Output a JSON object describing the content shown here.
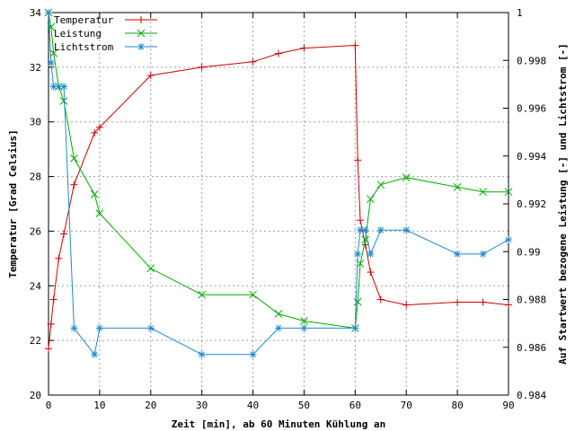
{
  "chart_data": {
    "type": "line",
    "xlabel": "Zeit [min], ab 60 Minuten Kühlung an",
    "ylabel": "Temperatur [Grad Celsius]",
    "y2label": "Auf Startwert bezogene Leistung [-] und Lichtstrom [-]",
    "xlim": [
      0,
      90
    ],
    "ylim": [
      20,
      34
    ],
    "y2lim": [
      0.984,
      1.0
    ],
    "x_ticks": [
      0,
      10,
      20,
      30,
      40,
      50,
      60,
      70,
      80,
      90
    ],
    "y_ticks": [
      20,
      22,
      24,
      26,
      28,
      30,
      32,
      34
    ],
    "y2_ticks": [
      "0.984",
      "0.986",
      "0.988",
      "0.99",
      "0.992",
      "0.994",
      "0.996",
      "0.998",
      "1"
    ],
    "grid": true,
    "legend_position": "top-left",
    "series": [
      {
        "name": "Temperatur",
        "axis": "left",
        "color": "#cc0000",
        "marker": "plus",
        "x": [
          0,
          0.5,
          1,
          2,
          3,
          5,
          9,
          10,
          20,
          30,
          40,
          45,
          50,
          60,
          60.5,
          61,
          62,
          63,
          65,
          70,
          80,
          85,
          90
        ],
        "y": [
          21.7,
          22.6,
          23.5,
          25.0,
          25.9,
          27.7,
          29.6,
          29.8,
          31.7,
          32.0,
          32.2,
          32.5,
          32.7,
          32.8,
          28.6,
          26.4,
          25.5,
          24.5,
          23.5,
          23.3,
          23.4,
          23.4,
          23.3
        ]
      },
      {
        "name": "Leistung",
        "axis": "right",
        "color": "#00aa00",
        "marker": "x",
        "x": [
          0,
          0.5,
          1,
          2,
          3,
          5,
          9,
          10,
          20,
          30,
          40,
          45,
          50,
          60,
          60.5,
          61,
          62,
          63,
          65,
          70,
          80,
          85,
          90
        ],
        "y": [
          1.0,
          0.9994,
          0.9983,
          0.9969,
          0.9963,
          0.9939,
          0.9924,
          0.9916,
          0.9893,
          0.9882,
          0.9882,
          0.9874,
          0.9871,
          0.9868,
          0.9879,
          0.9895,
          0.9905,
          0.9922,
          0.9928,
          0.9931,
          0.9927,
          0.9925,
          0.9925
        ]
      },
      {
        "name": "Lichtstrom",
        "axis": "right",
        "color": "#1f8ad0",
        "marker": "star",
        "x": [
          0,
          0.5,
          1,
          2,
          3,
          5,
          9,
          10,
          20,
          30,
          40,
          45,
          50,
          60,
          60.5,
          61,
          62,
          63,
          65,
          70,
          80,
          85,
          90
        ],
        "y": [
          1.0,
          0.9979,
          0.9969,
          0.9969,
          0.9969,
          0.9868,
          0.9857,
          0.9868,
          0.9868,
          0.9857,
          0.9857,
          0.9868,
          0.9868,
          0.9868,
          0.9899,
          0.9909,
          0.9909,
          0.9899,
          0.9909,
          0.9909,
          0.9899,
          0.9899,
          0.9905
        ]
      }
    ]
  }
}
